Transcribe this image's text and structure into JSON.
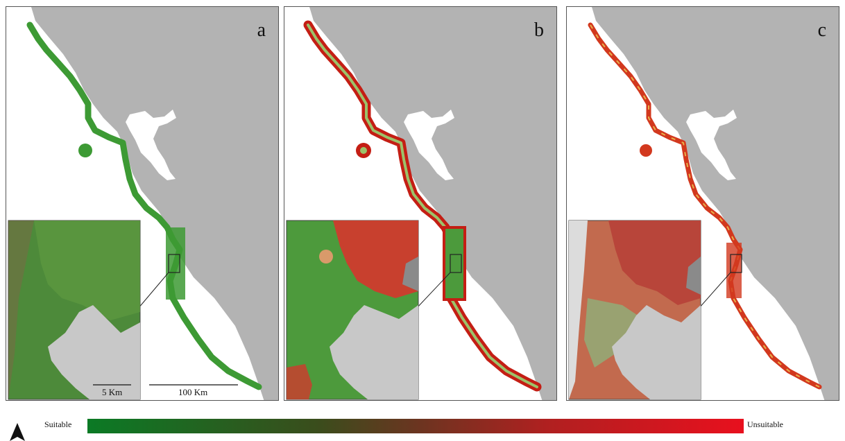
{
  "panels": [
    {
      "letter": "a"
    },
    {
      "letter": "b"
    },
    {
      "letter": "c"
    }
  ],
  "scale": {
    "inset_label": "5 Km",
    "main_label": "100 Km"
  },
  "legend": {
    "low_label": "Suitable",
    "high_label": "Unsuitable",
    "low_color": "#0b7a25",
    "high_color": "#e8101e"
  },
  "colors": {
    "land": "#b3b3b3",
    "sea": "#ffffff",
    "inset_land": "#c8c8c8",
    "panel_a_coast": "#3d9a34",
    "panel_b_coast": "#c41e14",
    "panel_c_coast": "#d2381e"
  },
  "north_arrow_icon": "north-arrow-icon"
}
